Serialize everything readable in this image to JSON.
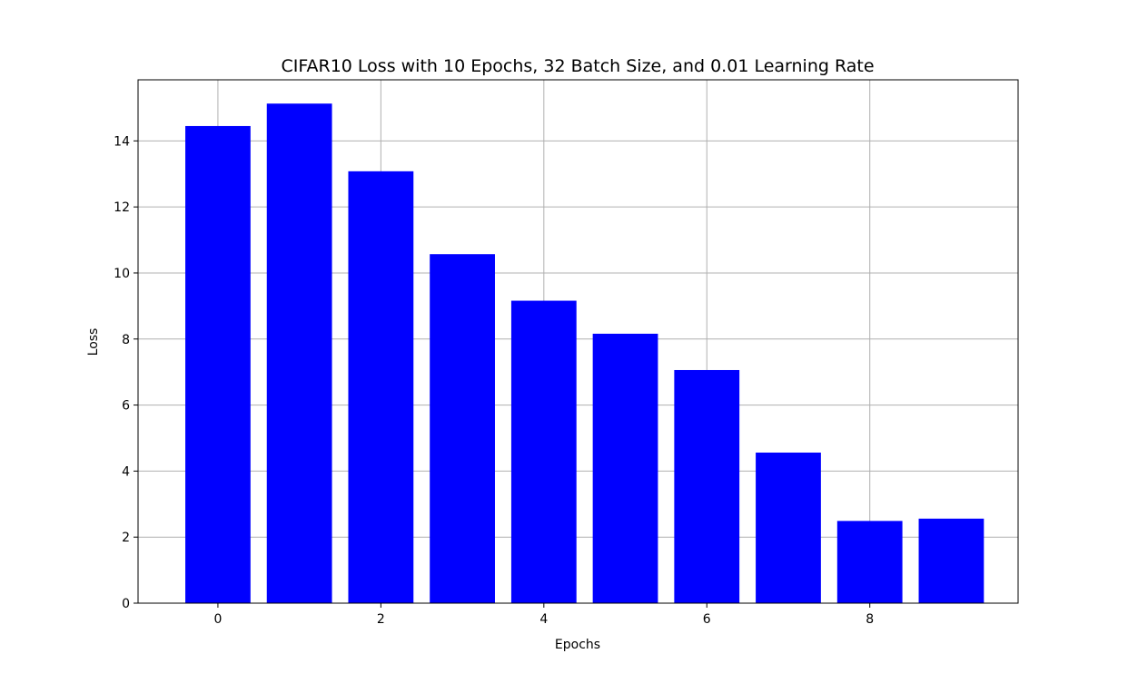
{
  "chart_data": {
    "type": "bar",
    "title": "CIFAR10 Loss with 10 Epochs, 32 Batch Size, and 0.01 Learning Rate",
    "xlabel": "Epochs",
    "ylabel": "Loss",
    "x": [
      0,
      1,
      2,
      3,
      4,
      5,
      6,
      7,
      8,
      9
    ],
    "values": [
      14.45,
      15.13,
      13.08,
      10.57,
      9.16,
      8.16,
      7.06,
      4.56,
      2.49,
      2.56
    ],
    "xlim": [
      -0.98,
      9.82
    ],
    "ylim": [
      0,
      15.85
    ],
    "xticks": [
      0,
      2,
      4,
      6,
      8
    ],
    "yticks": [
      0,
      2,
      4,
      6,
      8,
      10,
      12,
      14
    ],
    "bar_width": 0.8,
    "bar_color": "#0000ff",
    "grid": true,
    "grid_color": "#b0b0b0"
  }
}
